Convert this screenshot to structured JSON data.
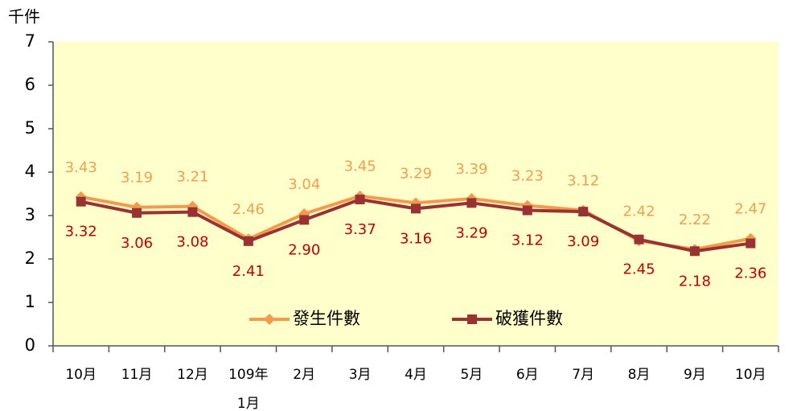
{
  "chart_data": {
    "type": "line",
    "y_axis_label": "千件",
    "categories": [
      "10月",
      "11月",
      "12月",
      "109年\n1月",
      "2月",
      "3月",
      "4月",
      "5月",
      "6月",
      "7月",
      "8月",
      "9月",
      "10月"
    ],
    "series": [
      {
        "name": "發生件數",
        "color": "#f59a4a",
        "label_color": "#f0a050",
        "label_position": "above",
        "values": [
          3.43,
          3.19,
          3.21,
          2.46,
          3.04,
          3.45,
          3.29,
          3.39,
          3.23,
          3.12,
          2.42,
          2.22,
          2.47
        ],
        "value_labels": [
          "3.43",
          "3.19",
          "3.21",
          "2.46",
          "3.04",
          "3.45",
          "3.29",
          "3.39",
          "3.23",
          "3.12",
          "2.42",
          "2.22",
          "2.47"
        ]
      },
      {
        "name": "破獲件數",
        "color": "#993333",
        "label_color": "#c00000",
        "label_position": "below",
        "values": [
          3.32,
          3.06,
          3.08,
          2.41,
          2.9,
          3.37,
          3.16,
          3.29,
          3.12,
          3.09,
          2.45,
          2.18,
          2.36
        ],
        "value_labels": [
          "3.32",
          "3.06",
          "3.08",
          "2.41",
          "2.90",
          "3.37",
          "3.16",
          "3.29",
          "3.12",
          "3.09",
          "2.45",
          "2.18",
          "2.36"
        ]
      }
    ],
    "ylim": [
      0,
      7
    ],
    "yticks": [
      0,
      1,
      2,
      3,
      4,
      5,
      6,
      7
    ],
    "grid": false,
    "plot_background": "#ffffcc"
  }
}
